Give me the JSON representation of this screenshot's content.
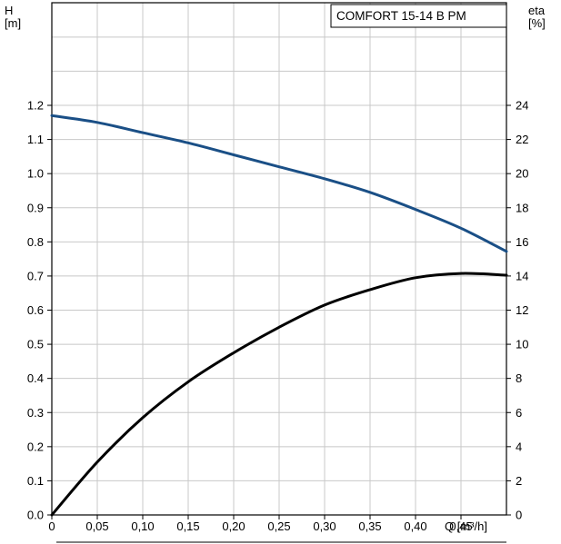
{
  "chart_data": {
    "type": "line",
    "title": "COMFORT  15-14 B PM",
    "xlabel": "Q [m³/h]",
    "ylabel_left": [
      "H",
      "[m]"
    ],
    "ylabel_right": [
      "eta",
      "[%]"
    ],
    "xlim": [
      0,
      0.5
    ],
    "ylim_left": [
      0,
      1.2
    ],
    "ylim_right": [
      0,
      24
    ],
    "x_ticks": [
      "0",
      "0,05",
      "0,10",
      "0,15",
      "0,20",
      "0,25",
      "0,30",
      "0,35",
      "0,40",
      "0,45"
    ],
    "y_left_ticks": [
      "0.0",
      "0.1",
      "0.2",
      "0.3",
      "0.4",
      "0.5",
      "0.6",
      "0.7",
      "0.8",
      "0.9",
      "1.0",
      "1.1",
      "1.2"
    ],
    "y_right_ticks": [
      "0",
      "2",
      "4",
      "6",
      "8",
      "10",
      "12",
      "14",
      "16",
      "18",
      "20",
      "22",
      "24"
    ],
    "grid": true,
    "series": [
      {
        "axis": "left",
        "color": "#1a4f86",
        "x": [
          0,
          0.05,
          0.1,
          0.15,
          0.2,
          0.25,
          0.3,
          0.35,
          0.4,
          0.45,
          0.5
        ],
        "values": [
          1.17,
          1.15,
          1.12,
          1.09,
          1.055,
          1.02,
          0.985,
          0.945,
          0.895,
          0.84,
          0.772
        ]
      },
      {
        "axis": "right",
        "color": "#000000",
        "x": [
          0,
          0.05,
          0.1,
          0.15,
          0.2,
          0.25,
          0.3,
          0.35,
          0.4,
          0.45,
          0.5
        ],
        "values": [
          0,
          3.1,
          5.7,
          7.8,
          9.5,
          11.0,
          12.3,
          13.2,
          13.9,
          14.15,
          14.05
        ]
      }
    ]
  }
}
